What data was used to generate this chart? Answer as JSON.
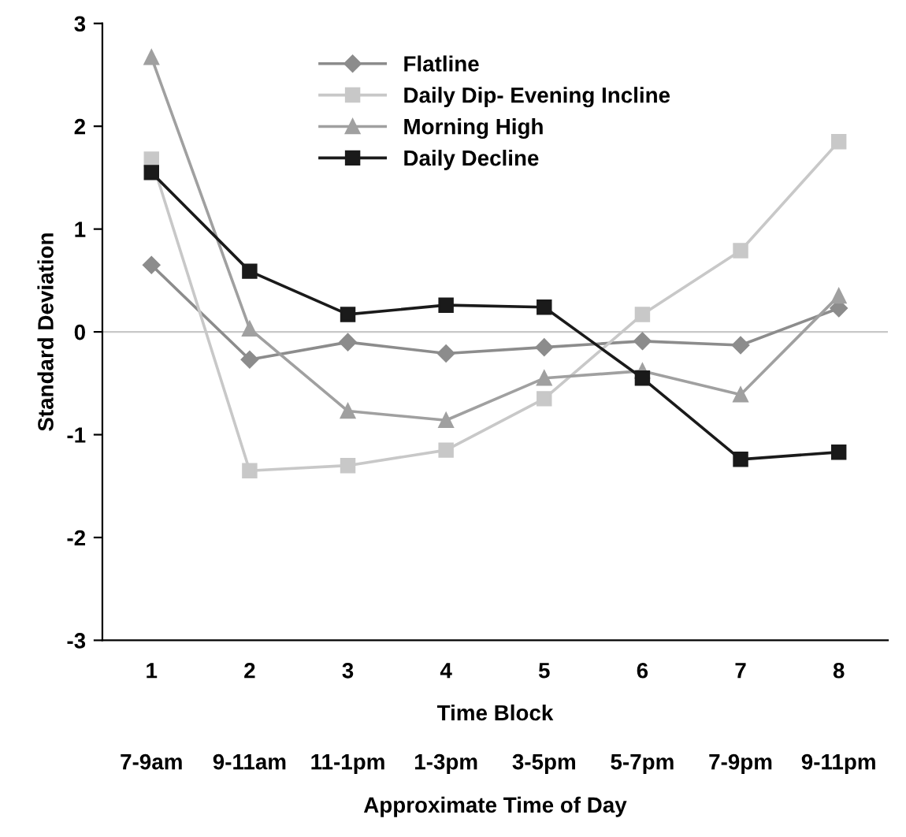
{
  "chart_data": {
    "type": "line",
    "categories": [
      "1",
      "2",
      "3",
      "4",
      "5",
      "6",
      "7",
      "8"
    ],
    "ylim": [
      -3,
      3
    ],
    "yticks": [
      -3,
      -2,
      -1,
      0,
      1,
      2,
      3
    ],
    "xlabel": "Time Block",
    "ylabel": "Standard Deviation",
    "annotations": [
      "7-9am",
      "9-11am",
      "11-1pm",
      "1-3pm",
      "3-5pm",
      "5-7pm",
      "7-9pm",
      "9-11pm",
      "Approximate Time of Day"
    ],
    "legend": "top",
    "line_style": "solid",
    "ref_lines": [
      {
        "axis": "y",
        "value": 0,
        "color": "#c8c8c8"
      }
    ],
    "series": [
      {
        "name": "Flatline",
        "color": "#8c8c8c",
        "marker": "diamond",
        "values": [
          0.65,
          -0.27,
          -0.1,
          -0.21,
          -0.15,
          -0.09,
          -0.13,
          0.23
        ]
      },
      {
        "name": "Daily Dip- Evening Incline",
        "color": "#c8c8c8",
        "marker": "square",
        "values": [
          1.68,
          -1.35,
          -1.3,
          -1.15,
          -0.65,
          0.17,
          0.79,
          1.85
        ]
      },
      {
        "name": "Morning High",
        "color": "#a0a0a0",
        "marker": "triangle",
        "values": [
          2.67,
          0.03,
          -0.77,
          -0.86,
          -0.45,
          -0.38,
          -0.61,
          0.35
        ]
      },
      {
        "name": "Daily Decline",
        "color": "#1a1a1a",
        "marker": "square",
        "values": [
          1.55,
          0.59,
          0.17,
          0.26,
          0.24,
          -0.45,
          -1.24,
          -1.17
        ]
      }
    ]
  }
}
